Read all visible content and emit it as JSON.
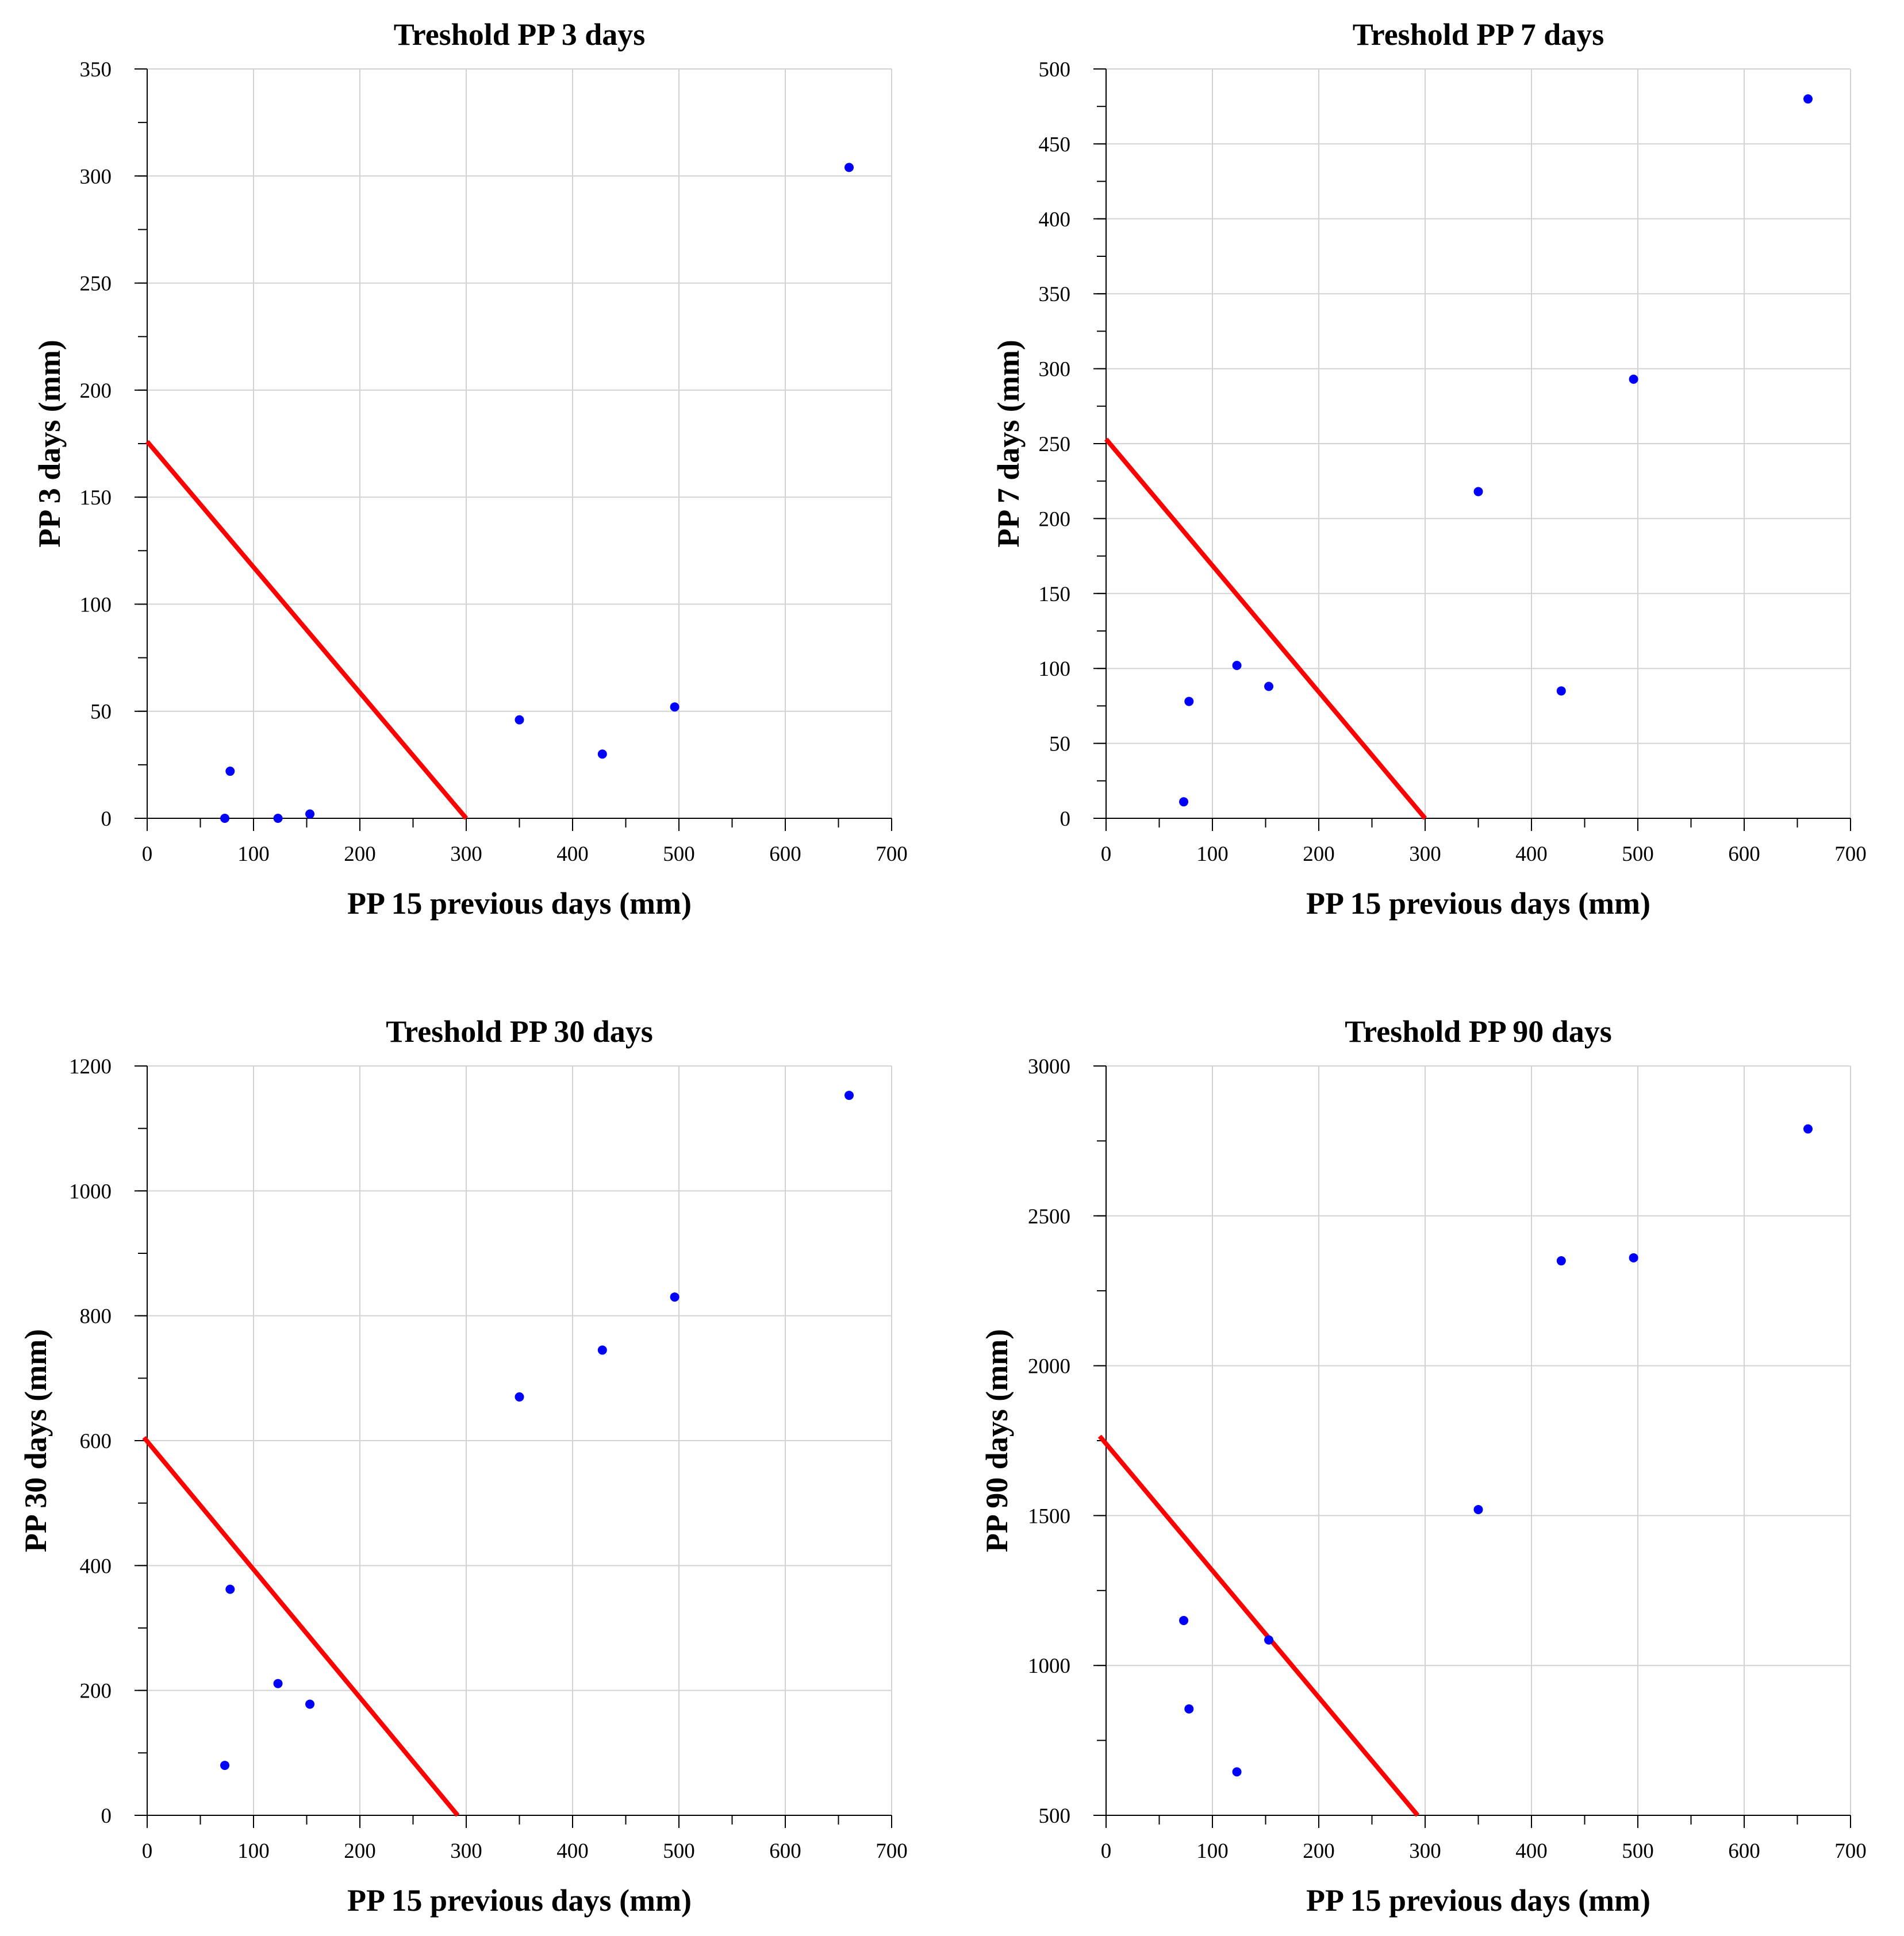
{
  "chart_data": [
    {
      "type": "scatter",
      "title": "Treshold PP 3 days",
      "xlabel": "PP 15 previous days (mm)",
      "ylabel": "PP 3 days (mm)",
      "xlim": [
        0,
        700
      ],
      "ylim": [
        0,
        350
      ],
      "xticks": [
        0,
        100,
        200,
        300,
        400,
        500,
        600,
        700
      ],
      "yticks": [
        0,
        50,
        100,
        150,
        200,
        250,
        300,
        350
      ],
      "minor_x": 50,
      "minor_y": 25,
      "grid": true,
      "point_color": "#0000ff",
      "line_color": "#ff0000",
      "points": [
        [
          73,
          0
        ],
        [
          78,
          22
        ],
        [
          123,
          0
        ],
        [
          153,
          2
        ],
        [
          350,
          46
        ],
        [
          428,
          30
        ],
        [
          496,
          52
        ],
        [
          660,
          304
        ]
      ],
      "threshold_line": [
        [
          0,
          176
        ],
        [
          300,
          0
        ]
      ]
    },
    {
      "type": "scatter",
      "title": "Treshold PP 7 days",
      "xlabel": "PP 15 previous days (mm)",
      "ylabel": "PP 7 days (mm)",
      "xlim": [
        0,
        700
      ],
      "ylim": [
        0,
        500
      ],
      "xticks": [
        0,
        100,
        200,
        300,
        400,
        500,
        600,
        700
      ],
      "yticks": [
        0,
        50,
        100,
        150,
        200,
        250,
        300,
        350,
        400,
        450,
        500
      ],
      "minor_x": 50,
      "minor_y": 25,
      "grid": true,
      "point_color": "#0000ff",
      "line_color": "#ff0000",
      "points": [
        [
          73,
          11
        ],
        [
          78,
          78
        ],
        [
          123,
          102
        ],
        [
          153,
          88
        ],
        [
          350,
          218
        ],
        [
          428,
          85
        ],
        [
          496,
          293
        ],
        [
          660,
          480
        ]
      ],
      "threshold_line": [
        [
          0,
          253
        ],
        [
          300,
          0
        ]
      ]
    },
    {
      "type": "scatter",
      "title": "Treshold PP 30 days",
      "xlabel": "PP 15 previous days (mm)",
      "ylabel": "PP 30 days (mm)",
      "xlim": [
        0,
        700
      ],
      "ylim": [
        0,
        1200
      ],
      "xticks": [
        0,
        100,
        200,
        300,
        400,
        500,
        600,
        700
      ],
      "yticks": [
        0,
        200,
        400,
        600,
        800,
        1000,
        1200
      ],
      "minor_x": 50,
      "minor_y": 100,
      "grid": true,
      "point_color": "#0000ff",
      "line_color": "#ff0000",
      "points": [
        [
          73,
          80
        ],
        [
          78,
          362
        ],
        [
          123,
          211
        ],
        [
          153,
          178
        ],
        [
          350,
          670
        ],
        [
          428,
          745
        ],
        [
          496,
          830
        ],
        [
          660,
          1153
        ]
      ],
      "threshold_line": [
        [
          -3,
          605
        ],
        [
          292,
          0
        ]
      ]
    },
    {
      "type": "scatter",
      "title": "Treshold PP 90 days",
      "xlabel": "PP 15 previous days (mm)",
      "ylabel": "PP 90 days (mm)",
      "xlim": [
        0,
        700
      ],
      "ylim": [
        500,
        3000
      ],
      "xticks": [
        0,
        100,
        200,
        300,
        400,
        500,
        600,
        700
      ],
      "yticks": [
        500,
        1000,
        1500,
        2000,
        2500,
        3000
      ],
      "minor_x": 50,
      "minor_y": 250,
      "grid": true,
      "point_color": "#0000ff",
      "line_color": "#ff0000",
      "points": [
        [
          73,
          1150
        ],
        [
          78,
          855
        ],
        [
          123,
          645
        ],
        [
          153,
          1085
        ],
        [
          350,
          1520
        ],
        [
          428,
          2350
        ],
        [
          496,
          2360
        ],
        [
          660,
          2790
        ]
      ],
      "threshold_line": [
        [
          -6,
          1765
        ],
        [
          293,
          500
        ]
      ]
    }
  ]
}
